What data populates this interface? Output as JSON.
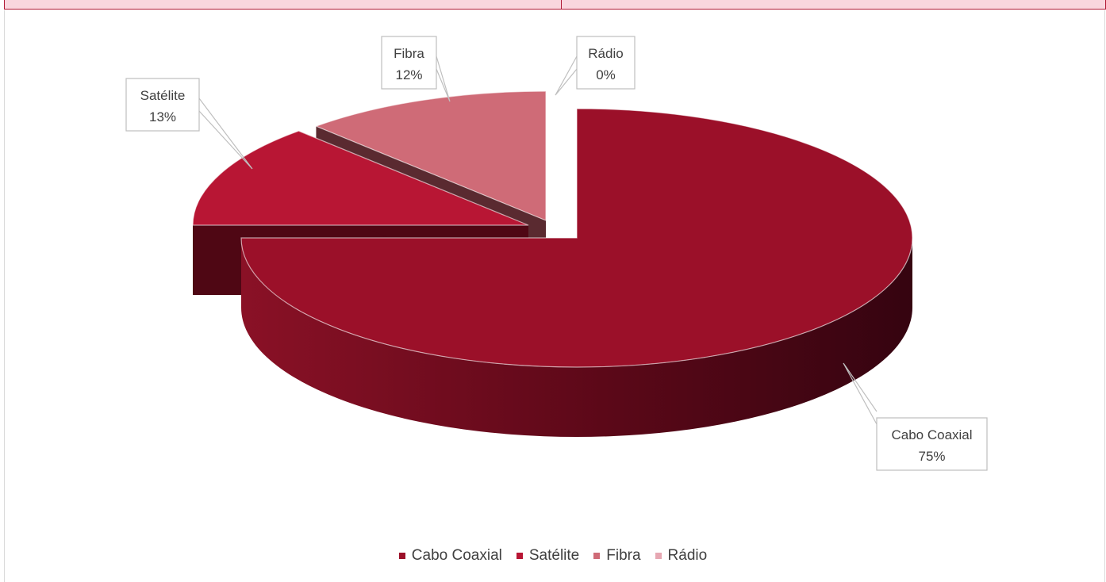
{
  "chart_data": {
    "type": "pie",
    "title": "",
    "three_d": true,
    "legend_position": "bottom",
    "slices": [
      {
        "label": "Cabo Coaxial",
        "value": 75,
        "display": "75%",
        "color": "#9b1029",
        "side_color": "#5e0a19"
      },
      {
        "label": "Satélite",
        "value": 13,
        "display": "13%",
        "color": "#b81634",
        "side_color": "#4f0714"
      },
      {
        "label": "Fibra",
        "value": 12,
        "display": "12%",
        "color": "#cf6b77",
        "side_color": "#5a2a30"
      },
      {
        "label": "Rádio",
        "value": 0,
        "display": "0%",
        "color": "#e6a7b2",
        "side_color": "#8a5a62"
      }
    ]
  }
}
